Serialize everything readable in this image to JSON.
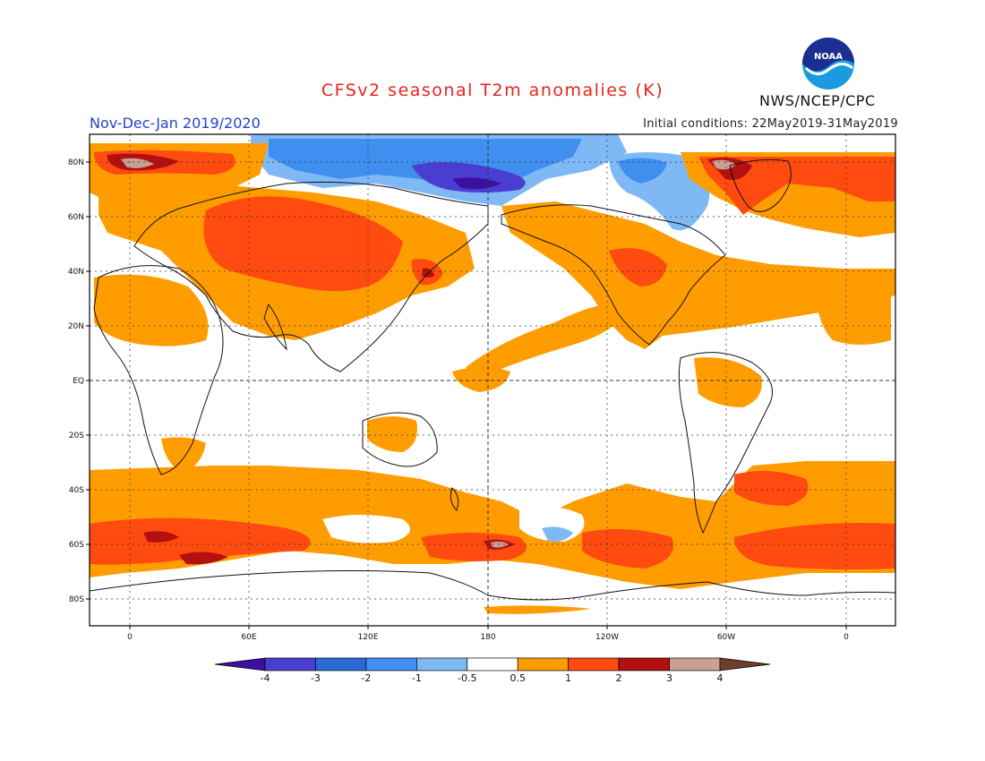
{
  "header": {
    "title": "CFSv2 seasonal T2m anomalies (K)",
    "period": "Nov-Dec-Jan 2019/2020",
    "initial_conditions": "Initial conditions: 22May2019-31May2019",
    "agency": "NWS/NCEP/CPC",
    "logo_text": "NOAA"
  },
  "map": {
    "lat_labels": [
      "80N",
      "60N",
      "40N",
      "20N",
      "EQ",
      "20S",
      "40S",
      "60S",
      "80S"
    ],
    "lon_labels": [
      "0",
      "60E",
      "120E",
      "180",
      "120W",
      "60W",
      "0"
    ]
  },
  "colorbar": {
    "labels": [
      "-4",
      "-3",
      "-2",
      "-1",
      "-0.5",
      "0.5",
      "1",
      "2",
      "3",
      "4"
    ],
    "colors": [
      "#3a10a0",
      "#4a3ed0",
      "#2a6ad6",
      "#3f8ef0",
      "#7fb9f5",
      "#ffffff",
      "#ff9d00",
      "#ff4a10",
      "#b41010",
      "#c9a192",
      "#6b3e2e"
    ]
  },
  "colors": {
    "title": "#e8241c",
    "period": "#2244cc",
    "warm1": "#ff9d00",
    "warm2": "#ff4a10",
    "warm3": "#b41010",
    "warm4": "#c9a192",
    "cold1": "#7fb9f5",
    "cold2": "#3f8ef0",
    "cold3": "#2a6ad6",
    "cold4": "#4a3ed0"
  }
}
